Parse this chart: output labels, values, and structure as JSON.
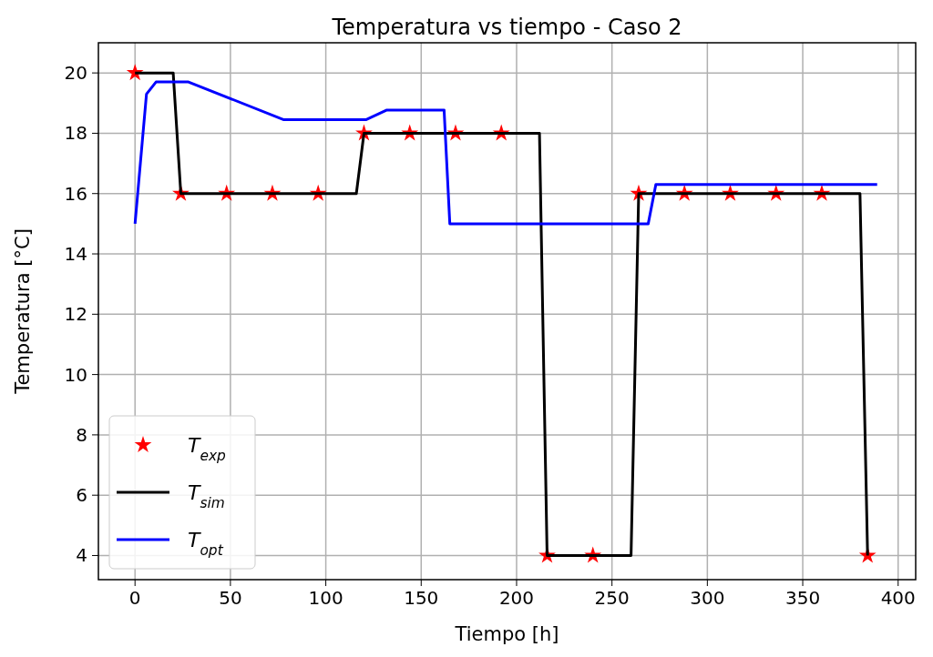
{
  "chart_data": {
    "type": "line",
    "title": "Temperatura vs tiempo - Caso 2",
    "xlabel": "Tiempo [h]",
    "ylabel": "Temperatura [°C]",
    "xlim": [
      -19.2,
      409.2
    ],
    "ylim": [
      3.2,
      21.0
    ],
    "xticks": [
      0,
      50,
      100,
      150,
      200,
      250,
      300,
      350,
      400
    ],
    "yticks": [
      4,
      6,
      8,
      10,
      12,
      14,
      16,
      18,
      20
    ],
    "grid": true,
    "legend": "bottom left",
    "series": [
      {
        "name": "T$_{exp}$",
        "type": "scatter",
        "marker": "star",
        "color": "#ff0000",
        "x": [
          0,
          24,
          48,
          72,
          96,
          120,
          144,
          168,
          192,
          216,
          240,
          264,
          288,
          312,
          336,
          360,
          384
        ],
        "values": [
          20,
          16,
          16,
          16,
          16,
          18,
          18,
          18,
          18,
          4,
          4,
          16,
          16,
          16,
          16,
          16,
          4
        ]
      },
      {
        "name": "T$_{sim}$",
        "marker": "none",
        "color": "#000000",
        "x": [
          0,
          20,
          24,
          116,
          120,
          212,
          216,
          260,
          264,
          380,
          384
        ],
        "values": [
          20,
          20,
          16,
          16,
          18,
          18,
          4,
          4,
          16,
          16,
          4
        ]
      },
      {
        "name": "T$_{opt}$",
        "marker": "none",
        "color": "#0000ff",
        "x": [
          0,
          6,
          11,
          28,
          78,
          121,
          132,
          162,
          165,
          269,
          273,
          389
        ],
        "values": [
          15,
          19.3,
          19.7,
          19.7,
          18.45,
          18.45,
          18.77,
          18.77,
          15,
          15,
          16.3,
          16.3
        ]
      }
    ]
  }
}
